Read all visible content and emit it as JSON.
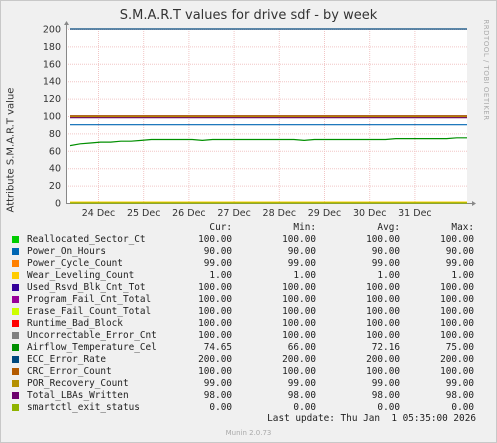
{
  "title": "S.M.A.R.T values for drive sdf - by week",
  "side_label": "RRDTOOL / TOBI OETIKER",
  "footer": "Munin 2.0.73",
  "legend_headers": {
    "cur": "Cur:",
    "min": "Min:",
    "avg": "Avg:",
    "max": "Max:"
  },
  "last_update": "Last update: Thu Jan  1 05:35:00 2026",
  "legend": [
    {
      "name": "Reallocated_Sector_Ct",
      "color": "#00cc00",
      "cur": "100.00",
      "min": "100.00",
      "avg": "100.00",
      "max": "100.00"
    },
    {
      "name": "Power_On_Hours",
      "color": "#0066b3",
      "cur": "90.00",
      "min": "90.00",
      "avg": "90.00",
      "max": "90.00"
    },
    {
      "name": "Power_Cycle_Count",
      "color": "#ff8000",
      "cur": "99.00",
      "min": "99.00",
      "avg": "99.00",
      "max": "99.00"
    },
    {
      "name": "Wear_Leveling_Count",
      "color": "#ffcc00",
      "cur": "1.00",
      "min": "1.00",
      "avg": "1.00",
      "max": "1.00"
    },
    {
      "name": "Used_Rsvd_Blk_Cnt_Tot",
      "color": "#330099",
      "cur": "100.00",
      "min": "100.00",
      "avg": "100.00",
      "max": "100.00"
    },
    {
      "name": "Program_Fail_Cnt_Total",
      "color": "#990099",
      "cur": "100.00",
      "min": "100.00",
      "avg": "100.00",
      "max": "100.00"
    },
    {
      "name": "Erase_Fail_Count_Total",
      "color": "#ccff00",
      "cur": "100.00",
      "min": "100.00",
      "avg": "100.00",
      "max": "100.00"
    },
    {
      "name": "Runtime_Bad_Block",
      "color": "#ff0000",
      "cur": "100.00",
      "min": "100.00",
      "avg": "100.00",
      "max": "100.00"
    },
    {
      "name": "Uncorrectable_Error_Cnt",
      "color": "#808080",
      "cur": "100.00",
      "min": "100.00",
      "avg": "100.00",
      "max": "100.00"
    },
    {
      "name": "Airflow_Temperature_Cel",
      "color": "#008f00",
      "cur": "74.65",
      "min": "66.00",
      "avg": "72.16",
      "max": "75.00"
    },
    {
      "name": "ECC_Error_Rate",
      "color": "#00487d",
      "cur": "200.00",
      "min": "200.00",
      "avg": "200.00",
      "max": "200.00"
    },
    {
      "name": "CRC_Error_Count",
      "color": "#b35a00",
      "cur": "100.00",
      "min": "100.00",
      "avg": "100.00",
      "max": "100.00"
    },
    {
      "name": "POR_Recovery_Count",
      "color": "#b38f00",
      "cur": "99.00",
      "min": "99.00",
      "avg": "99.00",
      "max": "99.00"
    },
    {
      "name": "Total_LBAs_Written",
      "color": "#6b006b",
      "cur": "98.00",
      "min": "98.00",
      "avg": "98.00",
      "max": "98.00"
    },
    {
      "name": "smartctl_exit_status",
      "color": "#8fb300",
      "cur": "0.00",
      "min": "0.00",
      "avg": "0.00",
      "max": "0.00"
    }
  ],
  "chart_data": {
    "type": "line",
    "title": "S.M.A.R.T values for drive sdf - by week",
    "ylabel": "Attribute S.M.A.R.T value",
    "ylim": [
      0,
      200
    ],
    "yticks": [
      0,
      20,
      40,
      60,
      80,
      100,
      120,
      140,
      160,
      180,
      200
    ],
    "xticks": [
      "24 Dec",
      "25 Dec",
      "26 Dec",
      "27 Dec",
      "28 Dec",
      "29 Dec",
      "30 Dec",
      "31 Dec"
    ],
    "xrange": [
      "23 Dec 05:35",
      "01 Jan 05:35"
    ],
    "grid": true,
    "series": [
      {
        "name": "Reallocated_Sector_Ct",
        "color": "#00cc00",
        "values": [
          100
        ]
      },
      {
        "name": "Power_On_Hours",
        "color": "#0066b3",
        "values": [
          90
        ]
      },
      {
        "name": "Power_Cycle_Count",
        "color": "#ff8000",
        "values": [
          99
        ]
      },
      {
        "name": "Wear_Leveling_Count",
        "color": "#ffcc00",
        "values": [
          1
        ]
      },
      {
        "name": "Used_Rsvd_Blk_Cnt_Tot",
        "color": "#330099",
        "values": [
          100
        ]
      },
      {
        "name": "Program_Fail_Cnt_Total",
        "color": "#990099",
        "values": [
          100
        ]
      },
      {
        "name": "Erase_Fail_Count_Total",
        "color": "#ccff00",
        "values": [
          100
        ]
      },
      {
        "name": "Runtime_Bad_Block",
        "color": "#ff0000",
        "values": [
          100
        ]
      },
      {
        "name": "Uncorrectable_Error_Cnt",
        "color": "#808080",
        "values": [
          100
        ]
      },
      {
        "name": "Airflow_Temperature_Cel",
        "color": "#008f00",
        "values": [
          66,
          68,
          69,
          70,
          70,
          71,
          71,
          72,
          73,
          73,
          73,
          73,
          73,
          72,
          73,
          73,
          73,
          73,
          73,
          73,
          73,
          73,
          73,
          72,
          73,
          73,
          73,
          73,
          73,
          73,
          73,
          73,
          74,
          74,
          74,
          74,
          74,
          74,
          75,
          75
        ]
      },
      {
        "name": "ECC_Error_Rate",
        "color": "#00487d",
        "values": [
          200
        ]
      },
      {
        "name": "CRC_Error_Count",
        "color": "#b35a00",
        "values": [
          100
        ]
      },
      {
        "name": "POR_Recovery_Count",
        "color": "#b38f00",
        "values": [
          99
        ]
      },
      {
        "name": "Total_LBAs_Written",
        "color": "#6b006b",
        "values": [
          98
        ]
      },
      {
        "name": "smartctl_exit_status",
        "color": "#8fb300",
        "values": [
          0
        ]
      }
    ]
  }
}
